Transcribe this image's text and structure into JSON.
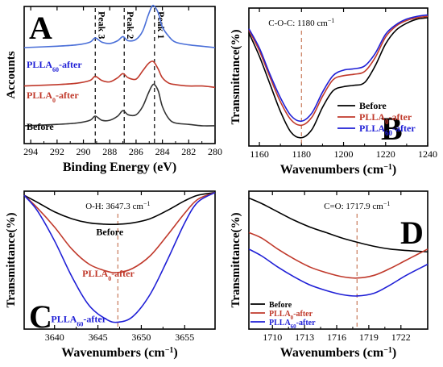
{
  "colors": {
    "black": "#000000",
    "red": "#c0392b",
    "blue": "#1f1fd6",
    "xps_blue": "#4a6fd8",
    "xps_red": "#c0392b",
    "xps_black": "#333333",
    "dashed_black": "#000000",
    "dashed_red": "#c87a5a"
  },
  "chart_data": [
    {
      "type": "line",
      "panel_label": "A",
      "xlabel": "Binding Energy (eV)",
      "ylabel": "Accounts",
      "x_ticks": [
        "294",
        "292",
        "290",
        "288",
        "286",
        "284",
        "282",
        "280"
      ],
      "xlim": [
        294.5,
        280
      ],
      "x_reversed": true,
      "peak_labels": [
        {
          "text": "Peak 3",
          "x": 289.1
        },
        {
          "text": "Peak 2",
          "x": 286.9
        },
        {
          "text": "Peak 1",
          "x": 284.6
        }
      ],
      "series": [
        {
          "name": "PLLA60-after",
          "name_main": "PLLA",
          "name_sub": "60",
          "name_suffix": "-after",
          "color": "#4a6fd8",
          "x": [
            294.5,
            292,
            290.5,
            289.5,
            289.1,
            288.6,
            288,
            287.4,
            287,
            286.6,
            286,
            285.5,
            285.1,
            284.8,
            284.6,
            284.3,
            284,
            283.5,
            283,
            282,
            281,
            280
          ],
          "y": [
            0.7,
            0.71,
            0.72,
            0.74,
            0.77,
            0.74,
            0.73,
            0.75,
            0.78,
            0.75,
            0.76,
            0.82,
            0.93,
            1.0,
            1.0,
            0.95,
            0.85,
            0.78,
            0.74,
            0.72,
            0.71,
            0.7
          ]
        },
        {
          "name": "PLLA0-after",
          "name_main": "PLLA",
          "name_sub": "0",
          "name_suffix": "-after",
          "color": "#c0392b",
          "x": [
            294.5,
            292,
            290.5,
            289.5,
            289.1,
            288.6,
            288,
            287.4,
            287,
            286.6,
            286,
            285.5,
            285.1,
            284.8,
            284.6,
            284.3,
            284,
            283.5,
            283,
            282,
            281,
            280
          ],
          "y": [
            0.42,
            0.43,
            0.44,
            0.46,
            0.49,
            0.46,
            0.45,
            0.48,
            0.51,
            0.48,
            0.47,
            0.53,
            0.58,
            0.6,
            0.59,
            0.54,
            0.48,
            0.44,
            0.43,
            0.42,
            0.42,
            0.41
          ]
        },
        {
          "name": "Before",
          "color": "#333333",
          "x": [
            294.5,
            292,
            290.5,
            289.5,
            289.1,
            288.6,
            288,
            287.4,
            287,
            286.6,
            286,
            285.5,
            285.1,
            284.8,
            284.6,
            284.3,
            284,
            283.5,
            283,
            282,
            281,
            280
          ],
          "y": [
            0.13,
            0.14,
            0.15,
            0.17,
            0.2,
            0.17,
            0.17,
            0.2,
            0.24,
            0.21,
            0.21,
            0.27,
            0.36,
            0.42,
            0.43,
            0.38,
            0.27,
            0.18,
            0.15,
            0.14,
            0.13,
            0.13
          ]
        }
      ]
    },
    {
      "type": "line",
      "panel_label": "B",
      "xlabel_main": "Wavenumbers (cm",
      "xlabel_sup": "−1",
      "xlabel_end": ")",
      "ylabel": "Transmittance(%)",
      "x_ticks": [
        "1160",
        "1180",
        "1200",
        "1220",
        "1240"
      ],
      "xlim": [
        1155,
        1240
      ],
      "annotation_main": "C-O-C: 1180 cm",
      "annotation_sup": "−1",
      "dashed_x": 1180,
      "legend_position": "bottom-right",
      "series": [
        {
          "name": "Before",
          "color": "#000000",
          "x": [
            1155,
            1160,
            1165,
            1170,
            1175,
            1180,
            1185,
            1190,
            1195,
            1200,
            1205,
            1210,
            1215,
            1220,
            1225,
            1230,
            1235,
            1240
          ],
          "y": [
            0.82,
            0.65,
            0.45,
            0.25,
            0.1,
            0.06,
            0.12,
            0.28,
            0.4,
            0.43,
            0.44,
            0.46,
            0.58,
            0.74,
            0.84,
            0.89,
            0.92,
            0.93
          ]
        },
        {
          "name": "PLLA0-after",
          "name_main": "PLLA",
          "name_sub": "0",
          "name_suffix": "-after",
          "color": "#c0392b",
          "x": [
            1155,
            1160,
            1165,
            1170,
            1175,
            1180,
            1185,
            1190,
            1195,
            1200,
            1205,
            1210,
            1215,
            1220,
            1225,
            1230,
            1235,
            1240
          ],
          "y": [
            0.84,
            0.69,
            0.5,
            0.32,
            0.19,
            0.15,
            0.21,
            0.36,
            0.48,
            0.51,
            0.52,
            0.54,
            0.64,
            0.79,
            0.87,
            0.91,
            0.93,
            0.94
          ]
        },
        {
          "name": "PLLA60-after",
          "name_main": "PLLA",
          "name_sub": "60",
          "name_suffix": "-after",
          "color": "#1f1fd6",
          "x": [
            1155,
            1160,
            1165,
            1170,
            1175,
            1180,
            1185,
            1190,
            1195,
            1200,
            1205,
            1210,
            1215,
            1220,
            1225,
            1230,
            1235,
            1240
          ],
          "y": [
            0.85,
            0.71,
            0.52,
            0.35,
            0.22,
            0.18,
            0.24,
            0.39,
            0.51,
            0.55,
            0.56,
            0.58,
            0.67,
            0.81,
            0.88,
            0.92,
            0.94,
            0.95
          ]
        }
      ]
    },
    {
      "type": "line",
      "panel_label": "C",
      "xlabel_main": "Wavenumbers (cm",
      "xlabel_sup": "−1",
      "xlabel_end": ")",
      "ylabel": "Transmittance(%)",
      "x_ticks": [
        "3640",
        "3645",
        "3650",
        "3655"
      ],
      "xlim": [
        3636.5,
        3658.5
      ],
      "annotation_main": "O-H: 3647.3 cm",
      "annotation_sup": "−1",
      "dashed_x": 3647.3,
      "series_labels": [
        {
          "text_main": "Before",
          "color": "#000000",
          "x": 3644.8,
          "y": 0.68
        },
        {
          "text_main": "PLLA",
          "text_sub": "0",
          "text_suffix": "-after",
          "color": "#c0392b",
          "x": 3643.2,
          "y": 0.38
        },
        {
          "text_main": "PLLA",
          "text_sub": "60",
          "text_suffix": "-after",
          "color": "#1f1fd6",
          "x": 3639.6,
          "y": 0.05
        }
      ],
      "series": [
        {
          "name": "Before",
          "color": "#000000",
          "x": [
            3636.5,
            3638,
            3640,
            3642,
            3644,
            3646,
            3647.3,
            3649,
            3651,
            3653,
            3655,
            3656.5,
            3658.5
          ],
          "y": [
            0.97,
            0.92,
            0.85,
            0.8,
            0.77,
            0.76,
            0.76,
            0.77,
            0.8,
            0.86,
            0.93,
            0.97,
            0.99
          ]
        },
        {
          "name": "PLLA0-after",
          "name_main": "PLLA",
          "name_sub": "0",
          "name_suffix": "-after",
          "color": "#c0392b",
          "x": [
            3636.5,
            3638,
            3640,
            3642,
            3644,
            3646,
            3647.3,
            3649,
            3651,
            3653,
            3655,
            3656.5,
            3658.5
          ],
          "y": [
            0.97,
            0.88,
            0.74,
            0.58,
            0.47,
            0.42,
            0.41,
            0.44,
            0.53,
            0.68,
            0.84,
            0.94,
            0.99
          ]
        },
        {
          "name": "PLLA60-after",
          "name_main": "PLLA",
          "name_sub": "60",
          "name_suffix": "-after",
          "color": "#1f1fd6",
          "x": [
            3636.5,
            3638,
            3640,
            3642,
            3644,
            3646,
            3647.3,
            3649,
            3651,
            3653,
            3655,
            3656.5,
            3658.5
          ],
          "y": [
            0.97,
            0.86,
            0.64,
            0.38,
            0.17,
            0.07,
            0.05,
            0.09,
            0.25,
            0.5,
            0.77,
            0.92,
            0.99
          ]
        }
      ]
    },
    {
      "type": "line",
      "panel_label": "D",
      "xlabel_main": "Wavenumbers (cm",
      "xlabel_sup": "−1",
      "xlabel_end": ")",
      "ylabel": "Transmittance(%)",
      "x_ticks": [
        "1710",
        "1713",
        "1716",
        "1719",
        "1722"
      ],
      "xlim": [
        1707.8,
        1724.5
      ],
      "annotation_main": "C=O: 1717.9 cm",
      "annotation_sup": "−1",
      "dashed_x": 1717.9,
      "legend_position": "bottom-left",
      "series": [
        {
          "name": "Before",
          "color": "#000000",
          "x": [
            1707.8,
            1709,
            1710.5,
            1712,
            1713.5,
            1715,
            1716.5,
            1717.9,
            1719.5,
            1721,
            1722.5,
            1724.5
          ],
          "y": [
            0.95,
            0.91,
            0.85,
            0.79,
            0.74,
            0.7,
            0.66,
            0.63,
            0.6,
            0.58,
            0.57,
            0.56
          ]
        },
        {
          "name": "PLLA0-after",
          "name_main": "PLLA",
          "name_sub": "0",
          "name_suffix": "-after",
          "color": "#c0392b",
          "x": [
            1707.8,
            1709,
            1710.5,
            1712,
            1713.5,
            1715,
            1716.5,
            1717.9,
            1719.5,
            1721,
            1722.5,
            1724.5
          ],
          "y": [
            0.7,
            0.66,
            0.58,
            0.51,
            0.45,
            0.41,
            0.38,
            0.37,
            0.39,
            0.44,
            0.5,
            0.58
          ]
        },
        {
          "name": "PLLA60-after",
          "name_main": "PLLA",
          "name_sub": "60",
          "name_suffix": "-after",
          "color": "#1f1fd6",
          "x": [
            1707.8,
            1709,
            1710.5,
            1712,
            1713.5,
            1715,
            1716.5,
            1717.9,
            1719.5,
            1721,
            1722.5,
            1724.5
          ],
          "y": [
            0.58,
            0.53,
            0.45,
            0.38,
            0.32,
            0.28,
            0.25,
            0.24,
            0.26,
            0.32,
            0.39,
            0.47
          ]
        }
      ]
    }
  ]
}
